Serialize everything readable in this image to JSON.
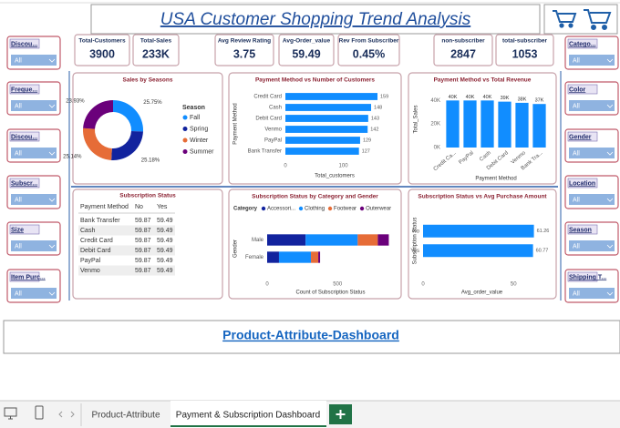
{
  "header": {
    "title": "USA Customer Shopping Trend Analysis"
  },
  "slicers_left": [
    {
      "label": "Discou...",
      "value": "All"
    },
    {
      "label": "Freque...",
      "value": "All"
    },
    {
      "label": "Discou...",
      "value": "All"
    },
    {
      "label": "Subscr...",
      "value": "All"
    },
    {
      "label": "Size",
      "value": "All"
    },
    {
      "label": "Item Purc...",
      "value": "All"
    }
  ],
  "slicers_right": [
    {
      "label": "Catego...",
      "value": "All"
    },
    {
      "label": "Color",
      "value": "All"
    },
    {
      "label": "Gender",
      "value": "All"
    },
    {
      "label": "Location",
      "value": "All"
    },
    {
      "label": "Season",
      "value": "All"
    },
    {
      "label": "Shipping T...",
      "value": "All"
    }
  ],
  "kpis": [
    {
      "label": "Total-Customers",
      "value": 3900
    },
    {
      "label": "Total-Sales",
      "value": "233K"
    },
    {
      "label": "Avg Review Rating",
      "value": 3.75
    },
    {
      "label": "Avg-Order_value",
      "value": 59.49
    },
    {
      "label": "Rev From Subscriber",
      "value": "0.45%"
    },
    {
      "label": "non-subscriber",
      "value": 2847
    },
    {
      "label": "total-subscriber",
      "value": 1053
    }
  ],
  "chart_data": [
    {
      "type": "pie",
      "donut": true,
      "title": "Sales by Seasons",
      "legend_title": "Season",
      "categories": [
        "Fall",
        "Spring",
        "Winter",
        "Summer"
      ],
      "values": [
        25.75,
        25.18,
        25.14,
        23.93
      ],
      "value_labels": [
        "25.75%",
        "25.18%",
        "25.14%",
        "23.93%"
      ],
      "colors": [
        "#118DFF",
        "#12239E",
        "#E66C37",
        "#6B007B"
      ]
    },
    {
      "type": "bar",
      "orientation": "horizontal",
      "data_labels": true,
      "title": "Payment Method vs Number of Customers",
      "categories": [
        "Credit Card",
        "Cash",
        "Debit Card",
        "Venmo",
        "PayPal",
        "Bank Transfer"
      ],
      "values": [
        159,
        148,
        143,
        142,
        129,
        127
      ],
      "color": "#118DFF",
      "xlim": [
        0,
        170
      ],
      "xticks": [
        0,
        100
      ],
      "xlabel": "Total_customers",
      "ylabel": "Payment Method"
    },
    {
      "type": "bar",
      "orientation": "vertical",
      "data_labels": true,
      "title": "Payment Method vs Total Revenue",
      "categories": [
        "Credit Ca...",
        "PayPal",
        "Cash",
        "Debit Card",
        "Venmo",
        "Bank Tra..."
      ],
      "values": [
        40000,
        40000,
        40000,
        39000,
        38000,
        37000
      ],
      "value_labels": [
        "40K",
        "40K",
        "40K",
        "39K",
        "38K",
        "37K"
      ],
      "color": "#118DFF",
      "ylim": [
        0,
        48000
      ],
      "yticks": [
        {
          "value": 0,
          "label": "0K"
        },
        {
          "value": 20000,
          "label": "20K"
        },
        {
          "value": 40000,
          "label": "40K"
        }
      ],
      "xlabel": "Payment Method",
      "ylabel": "Total_Sales"
    },
    {
      "type": "bar",
      "orientation": "horizontal",
      "stacked": true,
      "data_labels": false,
      "title": "Subscription Status by Category and Gender",
      "legend_title": "Category",
      "categories": [
        "Male",
        "Female"
      ],
      "series": [
        {
          "name": "Accessori...",
          "color": "#12239E",
          "values": [
            273,
            84
          ]
        },
        {
          "name": "Clothing",
          "color": "#118DFF",
          "values": [
            370,
            227
          ]
        },
        {
          "name": "Footwear",
          "color": "#E66C37",
          "values": [
            143,
            52
          ]
        },
        {
          "name": "Outerwear",
          "color": "#6B007B",
          "values": [
            78,
            13
          ]
        }
      ],
      "xlim": [
        0,
        900
      ],
      "xticks": [
        0,
        500
      ],
      "xlabel": "Count of Subscription Status",
      "ylabel": "Gender"
    },
    {
      "type": "bar",
      "orientation": "horizontal",
      "data_labels": true,
      "title": "Subscription Status vs Avg Purchase Amount",
      "categories": [
        "No",
        "Yes"
      ],
      "values": [
        61.26,
        60.77
      ],
      "color": "#118DFF",
      "xlim": [
        0,
        65
      ],
      "xticks": [
        0,
        50
      ],
      "xlabel": "Avg_order_value",
      "ylabel": "Subscription Status"
    }
  ],
  "table": {
    "title": "Subscription Status",
    "columns": [
      "Payment Method",
      "No",
      "Yes"
    ],
    "rows": [
      [
        "Bank Transfer",
        59.87,
        59.49
      ],
      [
        "Cash",
        59.87,
        59.49
      ],
      [
        "Credit Card",
        59.87,
        59.49
      ],
      [
        "Debit Card",
        59.87,
        59.49
      ],
      [
        "PayPal",
        59.87,
        59.49
      ],
      [
        "Venmo",
        59.87,
        59.49
      ]
    ]
  },
  "link": "Product-Attribute-Dashboard",
  "tabs": [
    "Product-Attribute",
    "Payment & Subscription Dashboard"
  ]
}
